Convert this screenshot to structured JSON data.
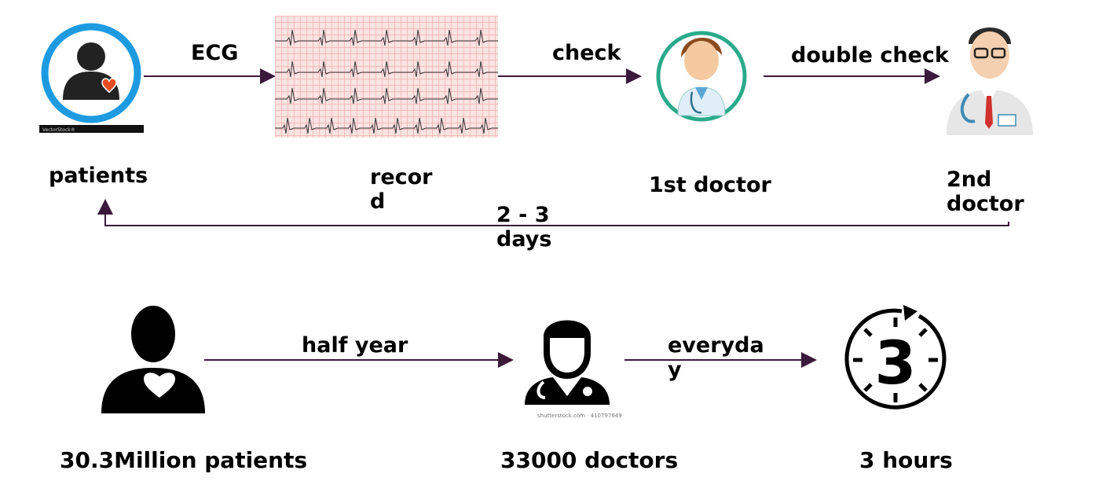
{
  "top_row": {
    "patients_label": "patients",
    "ecg_arrow_label": "ECG",
    "record_label": "recor\nd",
    "check_arrow_label": "check",
    "first_doctor_label": "1st doctor",
    "double_check_arrow_label": "double check",
    "second_doctor_label": "2nd\ndoctor",
    "return_label": "2 - 3\ndays"
  },
  "bottom_row": {
    "patients_label": "30.3Million patients",
    "half_year_arrow_label": "half year",
    "doctors_label": "33000 doctors",
    "everyday_arrow_label": "everyda\ny",
    "hours_label": "3 hours",
    "timer_digit": "3"
  },
  "credits": {
    "vectorstock": "VectorStock®",
    "shutterstock": "shutterstock.com · 410797649"
  },
  "colors": {
    "arrow": "#3b1a3b",
    "ring_blue": "#1e9be0",
    "doctor_ring": "#2aaa8a",
    "heart": "#e84c22",
    "silhouette": "#000000"
  }
}
